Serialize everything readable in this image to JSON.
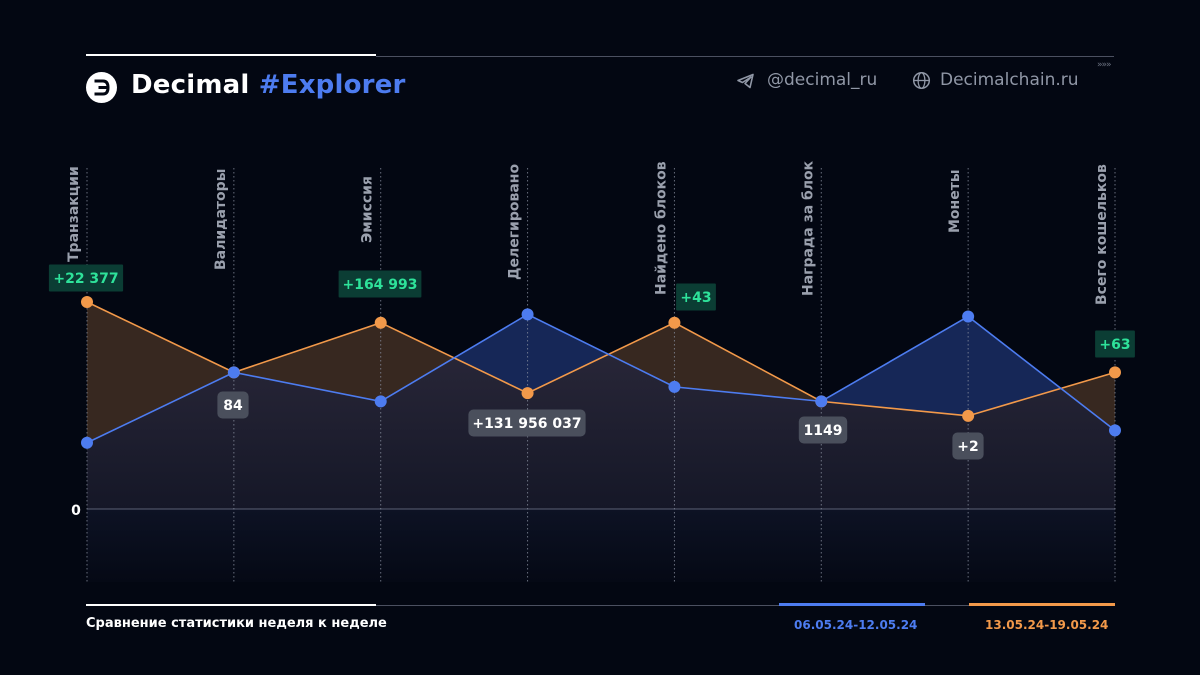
{
  "brand": {
    "name": "Decimal",
    "tag": "#Explorer"
  },
  "social": {
    "telegram": "@decimal_ru",
    "website": "Decimalchain.ru",
    "more": "»»»"
  },
  "footer": {
    "title": "Сравнение статистики неделя к неделе"
  },
  "colors": {
    "series1": "#4d7cf0",
    "series2": "#f2994a",
    "positive_badge": "#0b3d34",
    "positive_text": "#2ee29a",
    "neutral_badge": "#4a4f5c"
  },
  "chart_data": {
    "type": "area",
    "categories": [
      "Транзакции",
      "Валидаторы",
      "Эмиссия",
      "Делегировано",
      "Найдено блоков",
      "Награда за блок",
      "Монеты",
      "Всего кошельков"
    ],
    "y_zero_label": "0",
    "series": [
      {
        "name": "06.05.24-12.05.24",
        "color": "#4d7cf0",
        "values": [
          0.32,
          0.66,
          0.52,
          0.94,
          0.59,
          0.52,
          0.93,
          0.38
        ]
      },
      {
        "name": "13.05.24-19.05.24",
        "color": "#f2994a",
        "values": [
          1.0,
          0.66,
          0.9,
          0.56,
          0.9,
          0.52,
          0.45,
          0.66
        ]
      }
    ],
    "annotations": [
      {
        "index": 0,
        "text": "+22 377",
        "kind": "positive",
        "anchor": "above"
      },
      {
        "index": 1,
        "text": "84",
        "kind": "neutral",
        "anchor": "below"
      },
      {
        "index": 2,
        "text": "+164 993",
        "kind": "positive",
        "anchor": "above"
      },
      {
        "index": 3,
        "text": "+131 956 037",
        "kind": "neutral",
        "anchor": "below"
      },
      {
        "index": 4,
        "text": "+43",
        "kind": "positive",
        "anchor": "above-right"
      },
      {
        "index": 5,
        "text": "1149",
        "kind": "neutral",
        "anchor": "below"
      },
      {
        "index": 6,
        "text": "+2",
        "kind": "neutral",
        "anchor": "below"
      },
      {
        "index": 7,
        "text": "+63",
        "kind": "positive",
        "anchor": "above"
      }
    ]
  }
}
